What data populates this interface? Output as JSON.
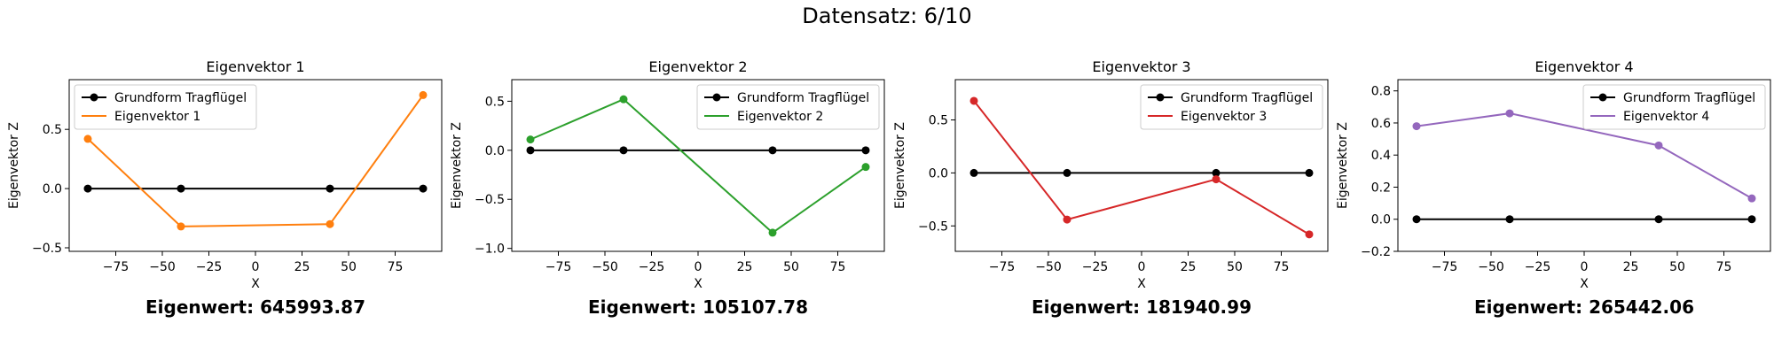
{
  "suptitle": "Datensatz: 6/10",
  "chart_data": [
    {
      "type": "line",
      "title": "Eigenvektor 1",
      "xlabel": "X",
      "ylabel": "Eigenvektor Z",
      "eigenvalue_text": "Eigenwert: 645993.87",
      "xlim": [
        -100,
        100
      ],
      "ylim": [
        -0.53,
        0.92
      ],
      "xticks": [
        -75,
        -50,
        -25,
        0,
        25,
        50,
        75
      ],
      "yticks": [
        -0.5,
        0.0,
        0.5
      ],
      "ytick_labels": [
        "−0.5",
        "0.0",
        "0.5"
      ],
      "legend_loc": "upper left",
      "series": [
        {
          "name": "Grundform Tragflügel",
          "color": "#000000",
          "x": [
            -90,
            -40,
            40,
            90
          ],
          "y": [
            0,
            0,
            0,
            0
          ]
        },
        {
          "name": "Eigenvektor 1",
          "color": "#ff7f0e",
          "x": [
            -90,
            -40,
            40,
            90
          ],
          "y": [
            0.42,
            -0.32,
            -0.3,
            0.79
          ]
        }
      ]
    },
    {
      "type": "line",
      "title": "Eigenvektor 2",
      "xlabel": "X",
      "ylabel": "Eigenvektor Z",
      "eigenvalue_text": "Eigenwert: 105107.78",
      "xlim": [
        -100,
        100
      ],
      "ylim": [
        -1.03,
        0.72
      ],
      "xticks": [
        -75,
        -50,
        -25,
        0,
        25,
        50,
        75
      ],
      "yticks": [
        -1.0,
        -0.5,
        0.0,
        0.5
      ],
      "ytick_labels": [
        "−1.0",
        "−0.5",
        "0.0",
        "0.5"
      ],
      "legend_loc": "upper right",
      "series": [
        {
          "name": "Grundform Tragflügel",
          "color": "#000000",
          "x": [
            -90,
            -40,
            40,
            90
          ],
          "y": [
            0,
            0,
            0,
            0
          ]
        },
        {
          "name": "Eigenvektor 2",
          "color": "#2ca02c",
          "x": [
            -90,
            -40,
            40,
            90
          ],
          "y": [
            0.11,
            0.52,
            -0.84,
            -0.17
          ]
        }
      ]
    },
    {
      "type": "line",
      "title": "Eigenvektor 3",
      "xlabel": "X",
      "ylabel": "Eigenvektor Z",
      "eigenvalue_text": "Eigenwert: 181940.99",
      "xlim": [
        -100,
        100
      ],
      "ylim": [
        -0.74,
        0.88
      ],
      "xticks": [
        -75,
        -50,
        -25,
        0,
        25,
        50,
        75
      ],
      "yticks": [
        -0.5,
        0.0,
        0.5
      ],
      "ytick_labels": [
        "−0.5",
        "0.0",
        "0.5"
      ],
      "legend_loc": "upper right",
      "series": [
        {
          "name": "Grundform Tragflügel",
          "color": "#000000",
          "x": [
            -90,
            -40,
            40,
            90
          ],
          "y": [
            0,
            0,
            0,
            0
          ]
        },
        {
          "name": "Eigenvektor 3",
          "color": "#d62728",
          "x": [
            -90,
            -40,
            40,
            90
          ],
          "y": [
            0.68,
            -0.44,
            -0.06,
            -0.58
          ]
        }
      ]
    },
    {
      "type": "line",
      "title": "Eigenvektor 4",
      "xlabel": "X",
      "ylabel": "Eigenvektor Z",
      "eigenvalue_text": "Eigenwert: 265442.06",
      "xlim": [
        -100,
        100
      ],
      "ylim": [
        -0.2,
        0.87
      ],
      "xticks": [
        -75,
        -50,
        -25,
        0,
        25,
        50,
        75
      ],
      "yticks": [
        -0.2,
        0.0,
        0.2,
        0.4,
        0.6,
        0.8
      ],
      "ytick_labels": [
        "−0.2",
        "0.0",
        "0.2",
        "0.4",
        "0.6",
        "0.8"
      ],
      "legend_loc": "upper right",
      "series": [
        {
          "name": "Grundform Tragflügel",
          "color": "#000000",
          "x": [
            -90,
            -40,
            40,
            90
          ],
          "y": [
            0,
            0,
            0,
            0
          ]
        },
        {
          "name": "Eigenvektor 4",
          "color": "#9467bd",
          "x": [
            -90,
            -40,
            40,
            90
          ],
          "y": [
            0.58,
            0.66,
            0.46,
            0.13
          ]
        }
      ]
    }
  ]
}
